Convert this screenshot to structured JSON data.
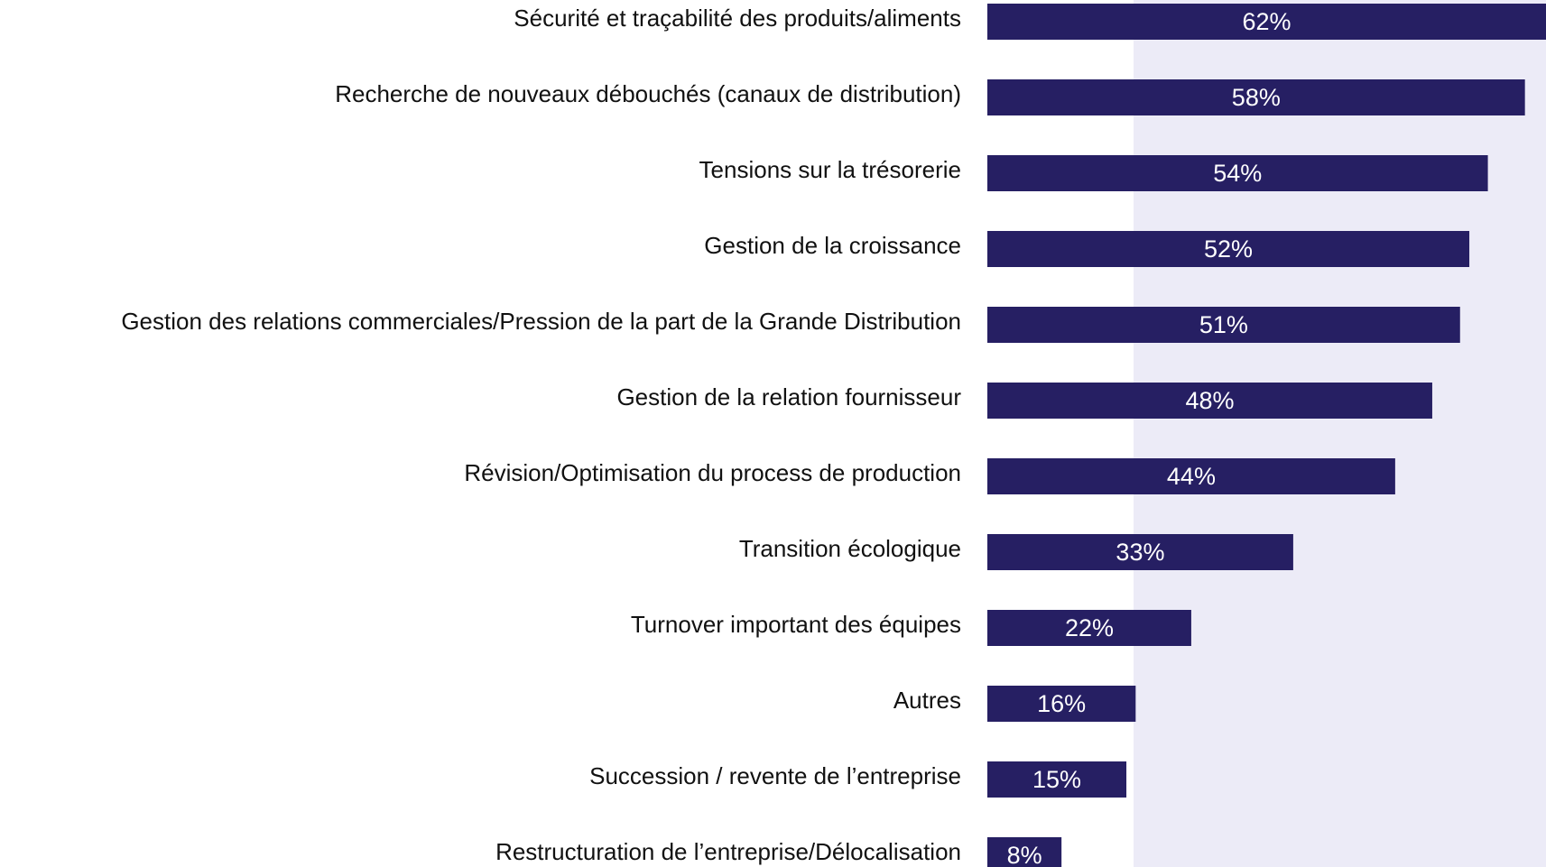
{
  "chart_data": {
    "type": "barh",
    "categories": [
      "Sécurité et traçabilité des produits/aliments",
      "Recherche de nouveaux débouchés (canaux de distribution)",
      "Tensions sur la trésorerie",
      "Gestion de la croissance",
      "Gestion des relations commerciales/Pression de la part de la Grande Distribution",
      "Gestion de la relation fournisseur",
      "Révision/Optimisation du process de production",
      "Transition écologique",
      "Turnover important des équipes",
      "Autres",
      "Succession / revente de l’entreprise",
      "Restructuration de l’entreprise/Délocalisation"
    ],
    "values": [
      62,
      58,
      54,
      52,
      51,
      48,
      44,
      33,
      22,
      16,
      15,
      8
    ],
    "value_labels": [
      "62%",
      "58%",
      "54%",
      "52%",
      "51%",
      "48%",
      "44%",
      "33%",
      "22%",
      "16%",
      "15%",
      "8%"
    ],
    "color": "#261f63"
  }
}
